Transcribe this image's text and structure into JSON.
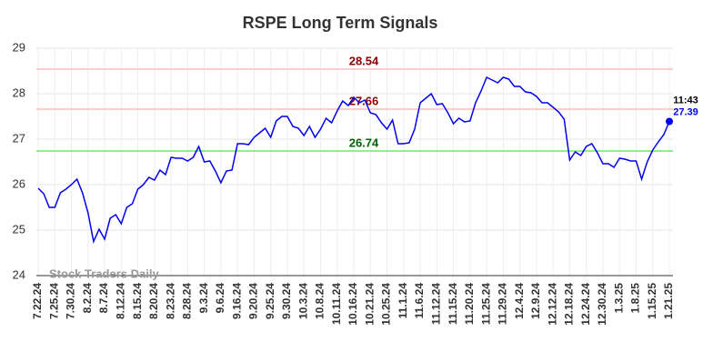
{
  "chart_data": {
    "type": "line",
    "title": "RSPE Long Term Signals",
    "categories": [
      "7.22.24",
      null,
      null,
      "7.25.24",
      null,
      null,
      "7.30.24",
      null,
      null,
      "8.2.24",
      null,
      null,
      "8.7.24",
      null,
      null,
      "8.12.24",
      null,
      null,
      "8.15.24",
      null,
      null,
      "8.20.24",
      null,
      null,
      "8.23.24",
      null,
      null,
      "8.28.24",
      null,
      null,
      "9.3.24",
      null,
      null,
      "9.6.24",
      null,
      null,
      "9.16.24",
      null,
      null,
      "9.20.24",
      null,
      null,
      "9.25.24",
      null,
      null,
      "9.30.24",
      null,
      null,
      "10.3.24",
      null,
      null,
      "10.8.24",
      null,
      null,
      "10.11.24",
      null,
      null,
      "10.16.24",
      null,
      null,
      "10.21.24",
      null,
      null,
      "10.25.24",
      null,
      null,
      "11.1.24",
      null,
      null,
      "11.6.24",
      null,
      null,
      "11.12.24",
      null,
      null,
      "11.15.24",
      null,
      null,
      "11.20.24",
      null,
      null,
      "11.25.24",
      null,
      null,
      "11.29.24",
      null,
      null,
      "12.4.24",
      null,
      null,
      "12.9.24",
      null,
      null,
      "12.12.24",
      null,
      null,
      "12.18.24",
      null,
      null,
      "12.24.24",
      null,
      null,
      "12.30.24",
      null,
      null,
      "1.3.25",
      null,
      null,
      "1.8.25",
      null,
      null,
      "1.15.25",
      null,
      null,
      "1.21.25"
    ],
    "values": [
      25.92,
      25.8,
      25.5,
      25.5,
      25.82,
      25.9,
      26.0,
      26.12,
      25.82,
      25.38,
      24.75,
      25.02,
      24.8,
      25.26,
      25.34,
      25.14,
      25.5,
      25.58,
      25.9,
      26.0,
      26.16,
      26.1,
      26.32,
      26.22,
      26.6,
      26.58,
      26.58,
      26.52,
      26.6,
      26.84,
      26.5,
      26.52,
      26.3,
      26.04,
      26.3,
      26.32,
      26.9,
      26.9,
      26.88,
      27.04,
      27.14,
      27.24,
      27.04,
      27.4,
      27.5,
      27.5,
      27.28,
      27.24,
      27.08,
      27.28,
      27.04,
      27.22,
      27.46,
      27.36,
      27.62,
      27.84,
      27.74,
      27.92,
      27.8,
      27.86,
      27.58,
      27.54,
      27.36,
      27.22,
      27.42,
      26.9,
      26.9,
      26.92,
      27.22,
      27.8,
      27.9,
      28.0,
      27.76,
      27.78,
      27.58,
      27.34,
      27.46,
      27.38,
      27.4,
      27.8,
      28.06,
      28.36,
      28.3,
      28.24,
      28.36,
      28.32,
      28.16,
      28.16,
      28.04,
      28.02,
      27.94,
      27.8,
      27.8,
      27.7,
      27.6,
      27.44,
      26.54,
      26.72,
      26.64,
      26.84,
      26.9,
      26.7,
      26.46,
      26.46,
      26.38,
      26.58,
      26.56,
      26.52,
      26.52,
      26.12,
      26.5,
      26.76,
      26.94,
      27.1,
      27.39
    ],
    "color": "#0000ee",
    "ylim": [
      24,
      29
    ],
    "yticks": [
      24,
      25,
      26,
      27,
      28,
      29
    ],
    "grid": true,
    "hlines": [
      {
        "value": 28.54,
        "color": "#ffcccc",
        "label_color": "#8b0000"
      },
      {
        "value": 27.66,
        "color": "#ffcccc",
        "label_color": "#8b0000"
      },
      {
        "value": 26.74,
        "color": "#90ee90",
        "label_color": "#006400"
      }
    ],
    "last_time": "11:43",
    "watermark": "Stock Traders Daily"
  }
}
